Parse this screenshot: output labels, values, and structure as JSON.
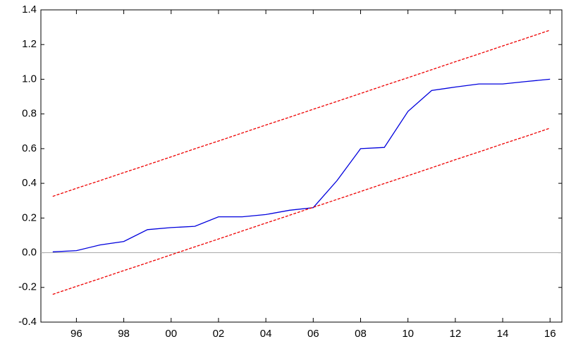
{
  "chart_data": {
    "type": "line",
    "x": [
      1995,
      1996,
      1997,
      1998,
      1999,
      2000,
      2001,
      2002,
      2003,
      2004,
      2005,
      2006,
      2007,
      2008,
      2009,
      2010,
      2011,
      2012,
      2013,
      2014,
      2015,
      2016
    ],
    "series": [
      {
        "color": "#0000dd",
        "dashed": false,
        "values": [
          0.005,
          0.012,
          0.045,
          0.065,
          0.133,
          0.145,
          0.152,
          0.207,
          0.207,
          0.22,
          0.245,
          0.26,
          0.415,
          0.6,
          0.607,
          0.815,
          0.935,
          0.955,
          0.973,
          0.973,
          0.987,
          1.0
        ]
      },
      {
        "color": "#ee0000",
        "dashed": true,
        "values": [
          0.325,
          0.371,
          0.416,
          0.462,
          0.507,
          0.553,
          0.599,
          0.644,
          0.69,
          0.736,
          0.781,
          0.827,
          0.872,
          0.918,
          0.964,
          1.009,
          1.055,
          1.101,
          1.146,
          1.192,
          1.237,
          1.283
        ]
      },
      {
        "color": "#ee0000",
        "dashed": true,
        "values": [
          -0.24,
          -0.194,
          -0.149,
          -0.103,
          -0.058,
          -0.012,
          0.034,
          0.079,
          0.125,
          0.171,
          0.216,
          0.262,
          0.307,
          0.353,
          0.399,
          0.444,
          0.49,
          0.536,
          0.581,
          0.627,
          0.672,
          0.718
        ]
      }
    ],
    "xlim": [
      1994.5,
      2016.5
    ],
    "xticks": [
      {
        "value": 1996,
        "label": "96"
      },
      {
        "value": 1998,
        "label": "98"
      },
      {
        "value": 2000,
        "label": "00"
      },
      {
        "value": 2002,
        "label": "02"
      },
      {
        "value": 2004,
        "label": "04"
      },
      {
        "value": 2006,
        "label": "06"
      },
      {
        "value": 2008,
        "label": "08"
      },
      {
        "value": 2010,
        "label": "10"
      },
      {
        "value": 2012,
        "label": "12"
      },
      {
        "value": 2014,
        "label": "14"
      },
      {
        "value": 2016,
        "label": "16"
      }
    ],
    "ylim": [
      -0.4,
      1.4
    ],
    "yticks": [
      -0.4,
      -0.2,
      {
        "value": 0,
        "label": "0.0"
      },
      0.2,
      0.4,
      0.6,
      0.8,
      {
        "value": 1,
        "label": "1.0"
      },
      1.2,
      1.4
    ],
    "zero_line": true
  }
}
